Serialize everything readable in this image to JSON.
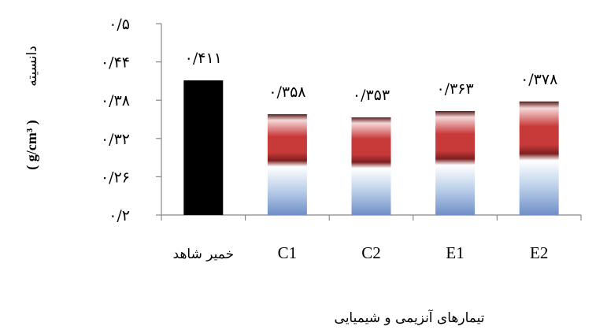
{
  "chart_data": {
    "type": "bar",
    "categories": [
      "خمیر شاهد",
      "C1",
      "C2",
      "E1",
      "E2"
    ],
    "values": [
      0.411,
      0.358,
      0.353,
      0.363,
      0.378
    ],
    "data_labels": [
      "۰/۴۱۱",
      "۰/۳۵۸",
      "۰/۳۵۳",
      "۰/۳۶۳",
      "۰/۳۷۸"
    ],
    "xlabel": "تیمارهای آنزیمی و شیمیایی",
    "ylabel": "دانسیته ( g/cm³ )",
    "ylabel_text": "دانسیته",
    "ylabel_unit": "( g/cm³ )",
    "ylim": [
      0.2,
      0.5
    ],
    "yticks": [
      0.2,
      0.26,
      0.32,
      0.38,
      0.44,
      0.5
    ],
    "ytick_labels": [
      "۰/۲",
      "۰/۲۶",
      "۰/۳۲",
      "۰/۳۸",
      "۰/۴۴",
      "۰/۵"
    ],
    "grid": false,
    "colors": {
      "control": "#000000",
      "gradient_top": "#5a1a1a",
      "gradient_red": "#c83a3a",
      "gradient_blue": "#7a9bd0",
      "axis": "#888888"
    }
  }
}
